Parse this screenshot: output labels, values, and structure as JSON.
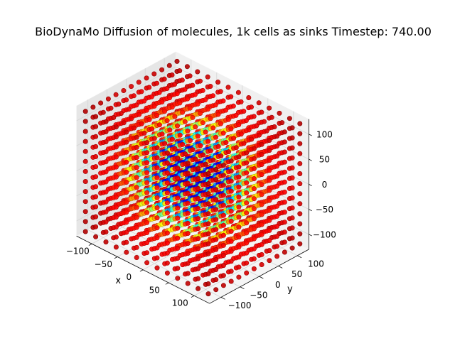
{
  "chart_data": {
    "type": "scatter",
    "projection": "3d",
    "title": "BioDynaMo Diffusion of molecules, 1k cells as sinks Timestep: 740.00",
    "xlabel": "x",
    "ylabel": "y",
    "zlabel": "",
    "xlim": [
      -130,
      130
    ],
    "ylim": [
      -130,
      130
    ],
    "zlim": [
      -130,
      130
    ],
    "x_ticks": [
      -100,
      -50,
      0,
      50,
      100
    ],
    "x_tick_labels": [
      "−100",
      "−50",
      "0",
      "50",
      "100"
    ],
    "y_ticks": [
      -100,
      -50,
      0,
      50,
      100
    ],
    "y_tick_labels": [
      "−100",
      "−50",
      "0",
      "50",
      "100"
    ],
    "z_ticks": [
      -100,
      -50,
      0,
      50,
      100
    ],
    "z_tick_labels": [
      "−100",
      "−50",
      "0",
      "50",
      "100"
    ],
    "grid": true,
    "legend": "none",
    "colormap": "jet",
    "marker": "circle",
    "grid_points": {
      "x": [
        -120,
        -100,
        -80,
        -60,
        -40,
        -20,
        0,
        20,
        40,
        60,
        80,
        100,
        120
      ],
      "y": [
        -120,
        -100,
        -80,
        -60,
        -40,
        -20,
        0,
        20,
        40,
        60,
        80,
        100,
        120
      ],
      "z": [
        -120,
        -100,
        -80,
        -60,
        -40,
        -20,
        0,
        20,
        40,
        60,
        80,
        100,
        120
      ]
    },
    "concentration_by_radius": {
      "radius": [
        0,
        60,
        75,
        90,
        105,
        120,
        200
      ],
      "value": [
        0.05,
        0.15,
        0.3,
        0.5,
        0.68,
        0.85,
        0.95
      ]
    }
  }
}
